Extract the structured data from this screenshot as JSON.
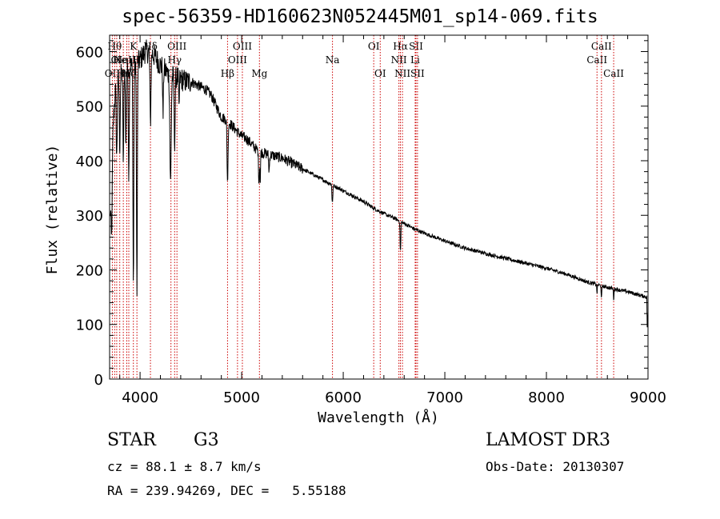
{
  "chart_data": {
    "type": "line",
    "title": "spec-56359-HD160623N052445M01_sp14-069.fits",
    "xlabel": "Wavelength (Å)",
    "ylabel": "Flux (relative)",
    "xlim": [
      3700,
      9000
    ],
    "ylim": [
      0,
      630
    ],
    "x_ticks": [
      4000,
      5000,
      6000,
      7000,
      8000,
      9000
    ],
    "y_ticks": [
      0,
      100,
      200,
      300,
      400,
      500,
      600
    ],
    "grid": false,
    "series": [
      {
        "name": "flux",
        "color": "#000000",
        "continuum": [
          [
            3700,
            260
          ],
          [
            3720,
            420
          ],
          [
            3760,
            540
          ],
          [
            3800,
            555
          ],
          [
            3850,
            565
          ],
          [
            3900,
            575
          ],
          [
            3950,
            570
          ],
          [
            4000,
            585
          ],
          [
            4050,
            600
          ],
          [
            4100,
            600
          ],
          [
            4150,
            590
          ],
          [
            4200,
            575
          ],
          [
            4250,
            565
          ],
          [
            4300,
            555
          ],
          [
            4350,
            555
          ],
          [
            4400,
            550
          ],
          [
            4450,
            545
          ],
          [
            4500,
            545
          ],
          [
            4550,
            540
          ],
          [
            4600,
            535
          ],
          [
            4650,
            530
          ],
          [
            4700,
            520
          ],
          [
            4750,
            500
          ],
          [
            4800,
            480
          ],
          [
            4850,
            475
          ],
          [
            4900,
            465
          ],
          [
            4950,
            455
          ],
          [
            5000,
            445
          ],
          [
            5050,
            440
          ],
          [
            5100,
            430
          ],
          [
            5150,
            420
          ],
          [
            5200,
            415
          ],
          [
            5300,
            410
          ],
          [
            5400,
            405
          ],
          [
            5500,
            395
          ],
          [
            5600,
            385
          ],
          [
            5700,
            375
          ],
          [
            5800,
            365
          ],
          [
            5900,
            355
          ],
          [
            6000,
            345
          ],
          [
            6100,
            335
          ],
          [
            6200,
            325
          ],
          [
            6300,
            313
          ],
          [
            6400,
            303
          ],
          [
            6500,
            295
          ],
          [
            6600,
            285
          ],
          [
            6700,
            275
          ],
          [
            6800,
            267
          ],
          [
            6900,
            260
          ],
          [
            7000,
            253
          ],
          [
            7200,
            240
          ],
          [
            7400,
            230
          ],
          [
            7600,
            221
          ],
          [
            7800,
            212
          ],
          [
            8000,
            203
          ],
          [
            8200,
            192
          ],
          [
            8400,
            178
          ],
          [
            8600,
            168
          ],
          [
            8800,
            160
          ],
          [
            8950,
            152
          ],
          [
            8990,
            150
          ]
        ],
        "absorption_features": [
          {
            "center": 3720,
            "depth": 160,
            "width": 8
          },
          {
            "center": 3770,
            "depth": 140,
            "width": 7
          },
          {
            "center": 3800,
            "depth": 130,
            "width": 6
          },
          {
            "center": 3835,
            "depth": 160,
            "width": 6
          },
          {
            "center": 3860,
            "depth": 150,
            "width": 5
          },
          {
            "center": 3889,
            "depth": 200,
            "width": 6
          },
          {
            "center": 3934,
            "depth": 400,
            "width": 6
          },
          {
            "center": 3969,
            "depth": 430,
            "width": 6
          },
          {
            "center": 4102,
            "depth": 130,
            "width": 7
          },
          {
            "center": 4226,
            "depth": 90,
            "width": 5
          },
          {
            "center": 4300,
            "depth": 200,
            "width": 9
          },
          {
            "center": 4340,
            "depth": 120,
            "width": 7
          },
          {
            "center": 4383,
            "depth": 60,
            "width": 5
          },
          {
            "center": 4861,
            "depth": 110,
            "width": 7
          },
          {
            "center": 5167,
            "depth": 40,
            "width": 4
          },
          {
            "center": 5173,
            "depth": 50,
            "width": 4
          },
          {
            "center": 5183,
            "depth": 60,
            "width": 4
          },
          {
            "center": 5270,
            "depth": 30,
            "width": 6
          },
          {
            "center": 5890,
            "depth": 25,
            "width": 4
          },
          {
            "center": 5896,
            "depth": 25,
            "width": 4
          },
          {
            "center": 6563,
            "depth": 55,
            "width": 5
          },
          {
            "center": 8498,
            "depth": 15,
            "width": 4
          },
          {
            "center": 8542,
            "depth": 25,
            "width": 4
          },
          {
            "center": 8662,
            "depth": 20,
            "width": 4
          }
        ]
      }
    ],
    "line_markers": [
      {
        "wavelength": 3727,
        "label": "OII",
        "row": 3
      },
      {
        "wavelength": 3750,
        "label": "Hθ",
        "row": 1
      },
      {
        "wavelength": 3770,
        "label": "OI",
        "row": 2
      },
      {
        "wavelength": 3800,
        "label": "He",
        "row": 2
      },
      {
        "wavelength": 3835,
        "label": "Hη",
        "row": 3
      },
      {
        "wavelength": 3869,
        "label": "NeIII",
        "row": 2
      },
      {
        "wavelength": 3889,
        "label": "Hζ",
        "row": 3
      },
      {
        "wavelength": 3934,
        "label": "K",
        "row": 1
      },
      {
        "wavelength": 3969,
        "label": "H",
        "row": 2
      },
      {
        "wavelength": 4102,
        "label": "Hδ",
        "row": 1
      },
      {
        "wavelength": 4304,
        "label": "G",
        "row": 3
      },
      {
        "wavelength": 4340,
        "label": "Hγ",
        "row": 2
      },
      {
        "wavelength": 4363,
        "label": "OIII",
        "row": 1
      },
      {
        "wavelength": 4861,
        "label": "Hβ",
        "row": 3
      },
      {
        "wavelength": 4959,
        "label": "OIII",
        "row": 2
      },
      {
        "wavelength": 5007,
        "label": "OIII",
        "row": 1
      },
      {
        "wavelength": 5175,
        "label": "Mg",
        "row": 3
      },
      {
        "wavelength": 5894,
        "label": "Na",
        "row": 2
      },
      {
        "wavelength": 6300,
        "label": "OI",
        "row": 1
      },
      {
        "wavelength": 6364,
        "label": "OI",
        "row": 3
      },
      {
        "wavelength": 6548,
        "label": "NII",
        "row": 2
      },
      {
        "wavelength": 6563,
        "label": "Hα",
        "row": 1
      },
      {
        "wavelength": 6583,
        "label": "NII",
        "row": 3
      },
      {
        "wavelength": 6708,
        "label": "Li",
        "row": 2
      },
      {
        "wavelength": 6716,
        "label": "SII",
        "row": 1
      },
      {
        "wavelength": 6731,
        "label": "SII",
        "row": 3
      },
      {
        "wavelength": 8498,
        "label": "CaII",
        "row": 2
      },
      {
        "wavelength": 8542,
        "label": "CaII",
        "row": 1
      },
      {
        "wavelength": 8662,
        "label": "CaII",
        "row": 3
      }
    ],
    "marker_color": "#cc0000"
  },
  "info": {
    "object_class": "STAR",
    "subclass": "G3",
    "survey": "LAMOST DR3",
    "cz": "cz = 88.1 ± 8.7 km/s",
    "obs_date": "Obs-Date: 20130307",
    "radec": "RA = 239.94269, DEC =   5.55188"
  }
}
